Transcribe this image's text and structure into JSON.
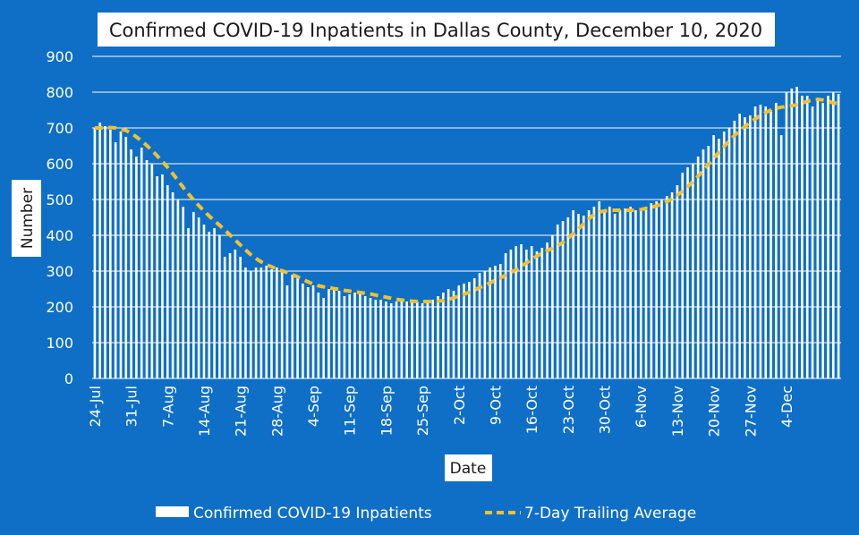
{
  "chart_data": {
    "type": "bar",
    "title": "Confirmed COVID-19 Inpatients in Dallas County, December 10, 2020",
    "xlabel": "Date",
    "ylabel": "Number",
    "ylim": [
      0,
      900
    ],
    "yticks": [
      0,
      100,
      200,
      300,
      400,
      500,
      600,
      700,
      800,
      900
    ],
    "grid": "horizontal",
    "legend_position": "bottom",
    "x_start": "2020-07-24",
    "x_end": "2020-12-10",
    "xtick_labels": [
      "24-Jul",
      "31-Jul",
      "7-Aug",
      "14-Aug",
      "21-Aug",
      "28-Aug",
      "4-Sep",
      "11-Sep",
      "18-Sep",
      "25-Sep",
      "2-Oct",
      "9-Oct",
      "16-Oct",
      "23-Oct",
      "30-Oct",
      "6-Nov",
      "13-Nov",
      "20-Nov",
      "27-Nov",
      "4-Dec"
    ],
    "series": [
      {
        "name": "Confirmed COVID-19 Inpatients",
        "kind": "bar",
        "color": "#ffffff",
        "values": [
          700,
          715,
          705,
          695,
          660,
          690,
          675,
          640,
          620,
          645,
          610,
          600,
          565,
          570,
          540,
          520,
          500,
          480,
          420,
          465,
          450,
          430,
          410,
          420,
          400,
          340,
          350,
          360,
          340,
          310,
          300,
          310,
          310,
          315,
          305,
          310,
          300,
          260,
          290,
          280,
          265,
          255,
          260,
          240,
          225,
          250,
          255,
          245,
          230,
          235,
          240,
          235,
          230,
          225,
          220,
          220,
          215,
          210,
          215,
          220,
          215,
          220,
          215,
          210,
          215,
          220,
          230,
          240,
          250,
          245,
          260,
          265,
          270,
          280,
          295,
          300,
          310,
          315,
          320,
          350,
          360,
          370,
          375,
          360,
          370,
          355,
          365,
          380,
          400,
          430,
          440,
          450,
          470,
          460,
          455,
          470,
          480,
          495,
          470,
          480,
          460,
          470,
          475,
          480,
          470,
          475,
          480,
          490,
          495,
          500,
          510,
          520,
          540,
          575,
          590,
          600,
          620,
          640,
          650,
          680,
          670,
          690,
          700,
          720,
          740,
          730,
          735,
          760,
          765,
          760,
          750,
          770,
          680,
          800,
          810,
          815,
          790,
          790,
          760,
          775,
          770,
          790,
          800,
          795
        ]
      },
      {
        "name": "7-Day Trailing Average",
        "kind": "line",
        "style": "dashed",
        "color": "#f2c12e",
        "values": [
          700,
          700,
          701,
          701,
          700,
          697,
          693,
          685,
          675,
          664,
          651,
          637,
          622,
          606,
          590,
          572,
          553,
          534,
          516,
          499,
          483,
          468,
          454,
          441,
          428,
          415,
          401,
          387,
          373,
          359,
          346,
          335,
          326,
          318,
          312,
          306,
          301,
          296,
          290,
          284,
          277,
          270,
          264,
          259,
          256,
          254,
          251,
          249,
          246,
          244,
          242,
          240,
          238,
          236,
          233,
          230,
          227,
          224,
          221,
          219,
          217,
          216,
          215,
          215,
          215,
          215,
          216,
          218,
          221,
          225,
          230,
          235,
          241,
          247,
          254,
          260,
          267,
          274,
          281,
          288,
          296,
          304,
          313,
          323,
          333,
          342,
          350,
          357,
          364,
          371,
          380,
          392,
          405,
          418,
          432,
          446,
          458,
          465,
          468,
          470,
          470,
          470,
          470,
          470,
          470,
          472,
          475,
          478,
          482,
          487,
          494,
          502,
          512,
          523,
          536,
          550,
          565,
          581,
          598,
          615,
          632,
          648,
          664,
          679,
          692,
          704,
          715,
          725,
          735,
          743,
          750,
          755,
          758,
          760,
          762,
          765,
          770,
          774,
          778,
          780,
          778,
          775,
          770,
          768
        ]
      }
    ]
  }
}
